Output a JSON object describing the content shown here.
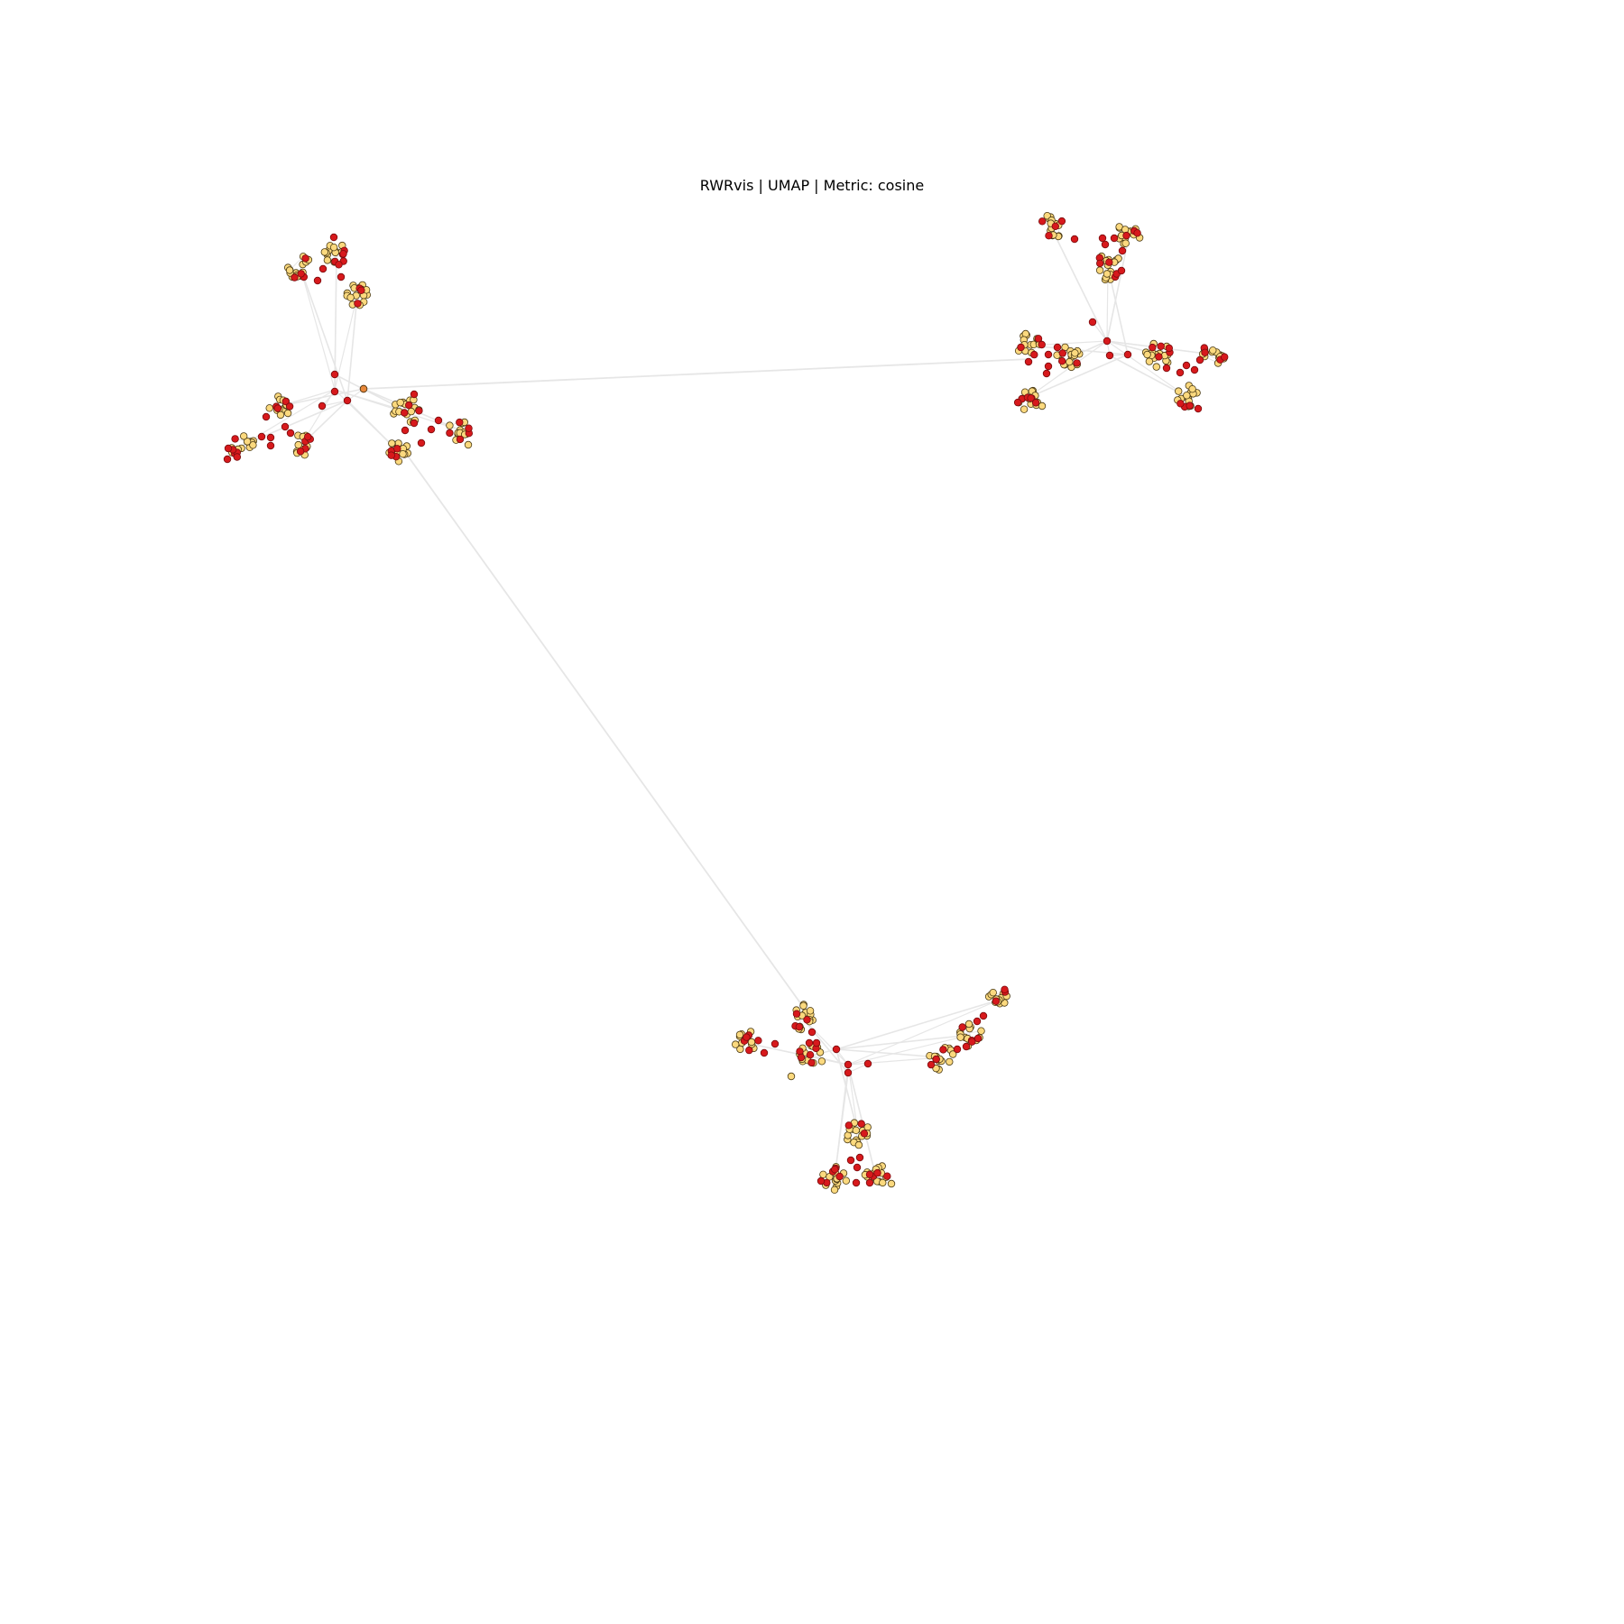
{
  "title": "RWRvis | UMAP | Metric: cosine",
  "colors": {
    "background": "#ffffff",
    "edge": "#e6e6e6",
    "seed_node": "#d7191c",
    "seed_stroke": "#7a0c0e",
    "neighbor_node": "#fbd97e",
    "neighbor_stroke": "#4a3a14",
    "query_node": "#e8873a"
  },
  "legend": "none",
  "grid": false,
  "axes": "hidden",
  "components": [
    {
      "name": "upper-left",
      "hub": [
        371,
        432
      ],
      "hubs": [
        [
          371,
          415
        ],
        [
          371,
          434
        ],
        [
          357,
          450
        ],
        [
          385,
          444
        ],
        [
          403,
          431
        ]
      ],
      "clusters": [
        {
          "c": [
            333,
            297
          ],
          "r": 14,
          "n": 18,
          "red": 4
        },
        {
          "c": [
            373,
            281
          ],
          "r": 14,
          "n": 18,
          "red": 6
        },
        {
          "c": [
            396,
            327
          ],
          "r": 14,
          "n": 18,
          "red": 3
        },
        {
          "c": [
            311,
            450
          ],
          "r": 13,
          "n": 16,
          "red": 4
        },
        {
          "c": [
            268,
            494
          ],
          "r": 14,
          "n": 18,
          "red": 5
        },
        {
          "c": [
            334,
            493
          ],
          "r": 13,
          "n": 16,
          "red": 5
        },
        {
          "c": [
            451,
            456
          ],
          "r": 15,
          "n": 20,
          "red": 3
        },
        {
          "c": [
            508,
            476
          ],
          "r": 13,
          "n": 16,
          "red": 5
        },
        {
          "c": [
            440,
            499
          ],
          "r": 13,
          "n": 16,
          "red": 4
        }
      ],
      "red_singles": [
        [
          370,
          263
        ],
        [
          358,
          298
        ],
        [
          352,
          311
        ],
        [
          378,
          307
        ],
        [
          295,
          462
        ],
        [
          316,
          473
        ],
        [
          290,
          484
        ],
        [
          300,
          485
        ],
        [
          300,
          494
        ],
        [
          253,
          497
        ],
        [
          252,
          509
        ],
        [
          322,
          480
        ],
        [
          459,
          437
        ],
        [
          486,
          466
        ],
        [
          478,
          476
        ],
        [
          449,
          477
        ],
        [
          467,
          491
        ],
        [
          459,
          469
        ]
      ]
    },
    {
      "name": "upper-right",
      "hub": [
        1227,
        378
      ],
      "hubs": [
        [
          1211,
          357
        ],
        [
          1227,
          378
        ],
        [
          1230,
          394
        ],
        [
          1250,
          393
        ]
      ],
      "clusters": [
        {
          "c": [
            1165,
            252
          ],
          "r": 14,
          "n": 18,
          "red": 4
        },
        {
          "c": [
            1252,
            258
          ],
          "r": 14,
          "n": 18,
          "red": 3
        },
        {
          "c": [
            1228,
            296
          ],
          "r": 15,
          "n": 20,
          "red": 5
        },
        {
          "c": [
            1141,
            383
          ],
          "r": 14,
          "n": 18,
          "red": 4
        },
        {
          "c": [
            1185,
            397
          ],
          "r": 14,
          "n": 18,
          "red": 3
        },
        {
          "c": [
            1284,
            393
          ],
          "r": 15,
          "n": 20,
          "red": 5
        },
        {
          "c": [
            1345,
            393
          ],
          "r": 13,
          "n": 16,
          "red": 4
        },
        {
          "c": [
            1139,
            441
          ],
          "r": 14,
          "n": 18,
          "red": 6
        },
        {
          "c": [
            1316,
            440
          ],
          "r": 13,
          "n": 16,
          "red": 3
        }
      ],
      "red_singles": [
        [
          1191,
          265
        ],
        [
          1222,
          264
        ],
        [
          1225,
          271
        ],
        [
          1235,
          264
        ],
        [
          1244,
          278
        ],
        [
          1243,
          300
        ],
        [
          1162,
          393
        ],
        [
          1172,
          385
        ],
        [
          1162,
          406
        ],
        [
          1160,
          414
        ],
        [
          1140,
          401
        ],
        [
          1308,
          413
        ],
        [
          1315,
          405
        ],
        [
          1324,
          410
        ],
        [
          1330,
          399
        ],
        [
          1293,
          408
        ],
        [
          1328,
          453
        ]
      ]
    },
    {
      "name": "bottom",
      "hub": [
        940,
        1180
      ],
      "hubs": [
        [
          927,
          1163
        ],
        [
          940,
          1180
        ],
        [
          940,
          1189
        ],
        [
          962,
          1179
        ]
      ],
      "clusters": [
        {
          "c": [
            888,
            1127
          ],
          "r": 14,
          "n": 18,
          "red": 4
        },
        {
          "c": [
            827,
            1156
          ],
          "r": 14,
          "n": 18,
          "red": 5
        },
        {
          "c": [
            899,
            1170
          ],
          "r": 14,
          "n": 18,
          "red": 4
        },
        {
          "c": [
            1108,
            1108
          ],
          "r": 13,
          "n": 16,
          "red": 3
        },
        {
          "c": [
            1076,
            1147
          ],
          "r": 13,
          "n": 16,
          "red": 4
        },
        {
          "c": [
            1043,
            1172
          ],
          "r": 14,
          "n": 18,
          "red": 4
        },
        {
          "c": [
            951,
            1256
          ],
          "r": 14,
          "n": 18,
          "red": 3
        },
        {
          "c": [
            925,
            1306
          ],
          "r": 14,
          "n": 18,
          "red": 5
        },
        {
          "c": [
            970,
            1301
          ],
          "r": 14,
          "n": 18,
          "red": 4
        }
      ],
      "red_singles": [
        [
          859,
          1157
        ],
        [
          847,
          1167
        ],
        [
          900,
          1144
        ],
        [
          897,
          1156
        ],
        [
          905,
          1156
        ],
        [
          888,
          1172
        ],
        [
          1083,
          1132
        ],
        [
          1090,
          1126
        ],
        [
          1071,
          1160
        ],
        [
          1061,
          1163
        ],
        [
          943,
          1286
        ],
        [
          953,
          1283
        ],
        [
          950,
          1294
        ],
        [
          910,
          1309
        ],
        [
          949,
          1311
        ],
        [
          964,
          1311
        ]
      ]
    }
  ],
  "long_edges": [
    {
      "from": [
        403,
        431
      ],
      "to": [
        1141,
        398
      ]
    },
    {
      "from": [
        441,
        490
      ],
      "to": [
        888,
        1113
      ]
    }
  ],
  "special_nodes": [
    {
      "p": [
        877,
        1193
      ],
      "kind": "neighbor"
    },
    {
      "p": [
        519,
        493
      ],
      "kind": "neighbor"
    },
    {
      "p": [
        1155,
        450
      ],
      "kind": "neighbor"
    },
    {
      "p": [
        988,
        1312
      ],
      "kind": "neighbor"
    }
  ]
}
